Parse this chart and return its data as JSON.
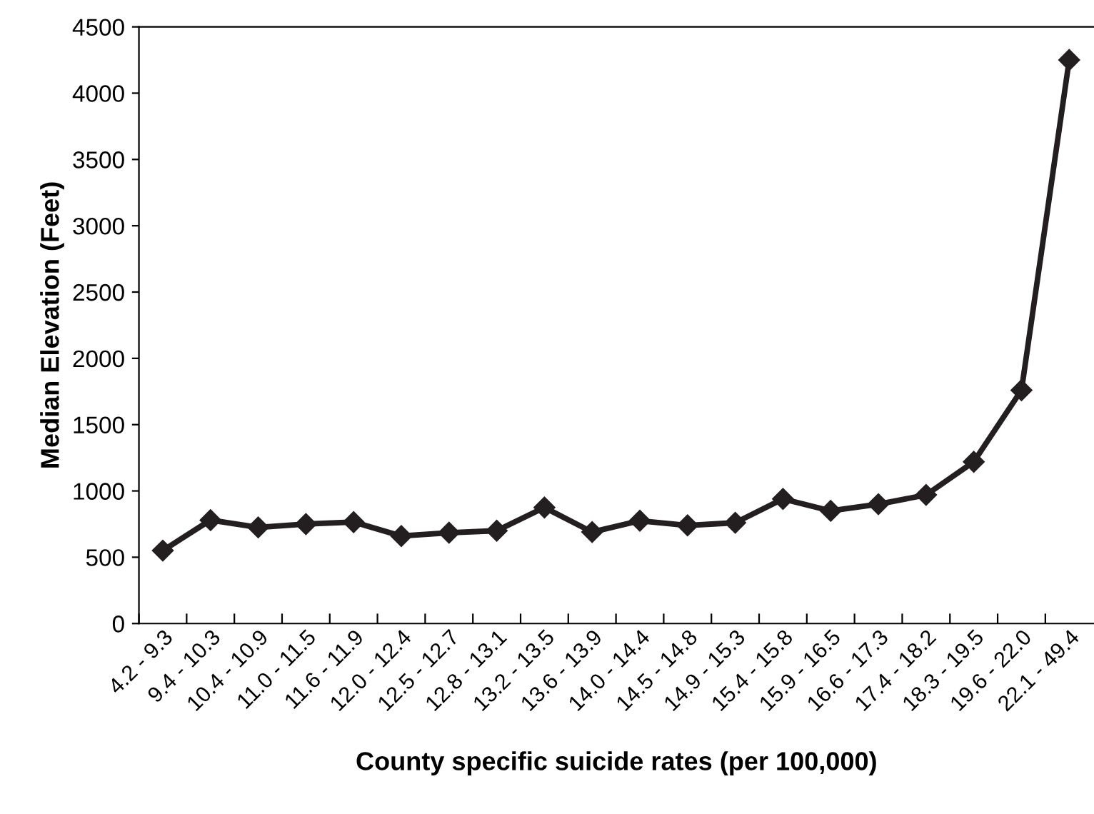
{
  "chart_data": {
    "type": "line",
    "xlabel": "County specific suicide rates (per 100,000)",
    "ylabel": "Median Elevation (Feet)",
    "categories": [
      "4.2 - 9.3",
      "9.4 - 10.3",
      "10.4 - 10.9",
      "11.0 - 11.5",
      "11.6 - 11.9",
      "12.0 - 12.4",
      "12.5 - 12.7",
      "12.8 - 13.1",
      "13.2 - 13.5",
      "13.6 - 13.9",
      "14.0 - 14.4",
      "14.5 - 14.8",
      "14.9 - 15.3",
      "15.4 - 15.8",
      "15.9 - 16.5",
      "16.6 - 17.3",
      "17.4 - 18.2",
      "18.3 - 19.5",
      "19.6 - 22.0",
      "22.1 - 49.4"
    ],
    "series": [
      {
        "color": "#231f20",
        "values": [
          550,
          780,
          725,
          750,
          765,
          660,
          685,
          700,
          875,
          690,
          775,
          740,
          760,
          940,
          850,
          900,
          970,
          1220,
          1760,
          4250
        ]
      }
    ],
    "ylim": [
      0,
      4500
    ],
    "yticks": [
      0,
      500,
      1000,
      1500,
      2000,
      2500,
      3000,
      3500,
      4000,
      4500
    ],
    "marker": "diamond",
    "line_style": "solid",
    "grid": false,
    "legend": false
  }
}
